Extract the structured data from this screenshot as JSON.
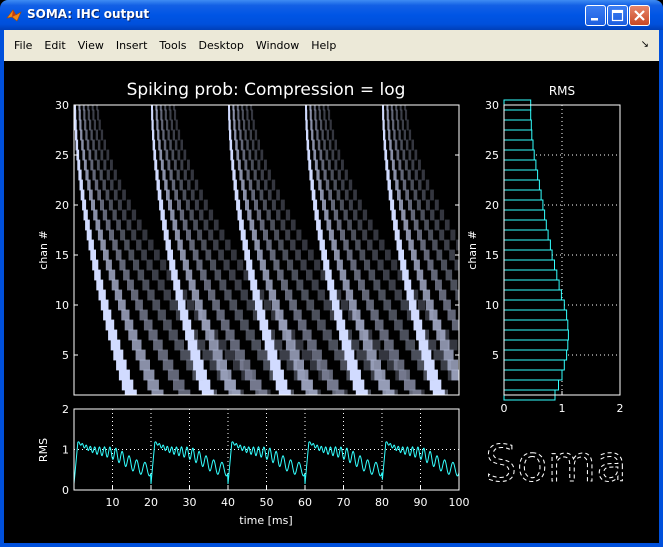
{
  "window": {
    "title": "SOMA: IHC output"
  },
  "menu": [
    "File",
    "Edit",
    "View",
    "Insert",
    "Tools",
    "Desktop",
    "Window",
    "Help"
  ],
  "colors": {
    "trace": "#33ffff",
    "titlebar": "#0055e5",
    "menubar": "#ece9d8",
    "figure_bg": "#000000",
    "axis_fg": "#ffffff"
  },
  "logo_text": "Soma",
  "chart_data": [
    {
      "type": "heatmap",
      "title": "Spiking prob: Compression = log",
      "xlabel": "",
      "ylabel": "chan #",
      "xlim": [
        0,
        100
      ],
      "ylim": [
        1,
        30
      ],
      "ytick_labels": [
        "5",
        "10",
        "15",
        "20",
        "25",
        "30"
      ],
      "colormap": "bone",
      "onset_times_ms": [
        0,
        20,
        40,
        60,
        80
      ]
    },
    {
      "type": "bar",
      "orientation": "horizontal",
      "title": "RMS",
      "ylabel": "chan #",
      "xlim": [
        0,
        2
      ],
      "ylim": [
        1,
        30
      ],
      "xtick_labels": [
        "0",
        "1",
        "2"
      ],
      "ytick_labels": [
        "5",
        "10",
        "15",
        "20",
        "25",
        "30"
      ],
      "grid": true,
      "categories": [
        1,
        2,
        3,
        4,
        5,
        6,
        7,
        8,
        9,
        10,
        11,
        12,
        13,
        14,
        15,
        16,
        17,
        18,
        19,
        20,
        21,
        22,
        23,
        24,
        25,
        26,
        27,
        28,
        29,
        30
      ],
      "values": [
        0.88,
        0.94,
        1.0,
        1.04,
        1.08,
        1.1,
        1.11,
        1.1,
        1.08,
        1.04,
        0.99,
        0.95,
        0.91,
        0.87,
        0.83,
        0.8,
        0.76,
        0.73,
        0.7,
        0.67,
        0.64,
        0.61,
        0.58,
        0.55,
        0.52,
        0.5,
        0.48,
        0.47,
        0.46,
        0.46
      ]
    },
    {
      "type": "line",
      "title": "",
      "xlabel": "time [ms]",
      "ylabel": "RMS",
      "xlim": [
        0,
        100
      ],
      "ylim": [
        0,
        2
      ],
      "xtick_labels": [
        "10",
        "20",
        "30",
        "40",
        "50",
        "60",
        "70",
        "80",
        "90",
        "100"
      ],
      "ytick_labels": [
        "0",
        "1",
        "2"
      ],
      "grid": true,
      "period_ms": 20,
      "peak": 1.18,
      "baseline": 0.15
    }
  ]
}
